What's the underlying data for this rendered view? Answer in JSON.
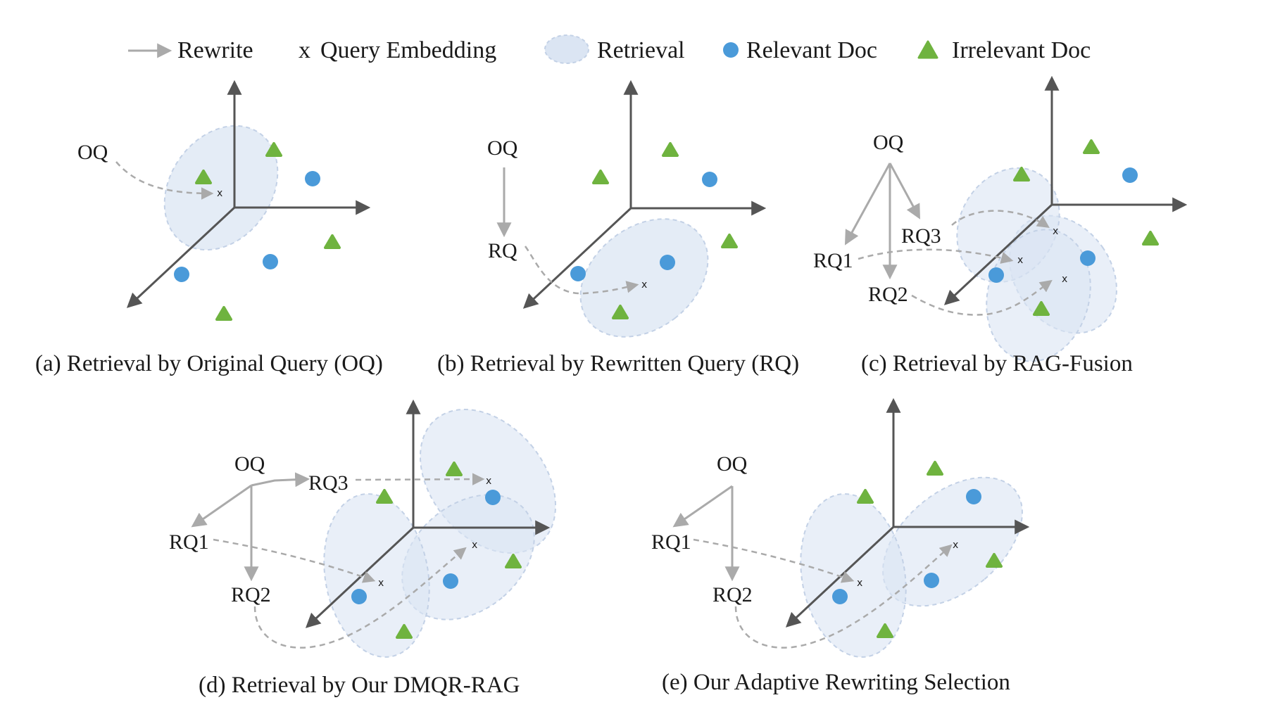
{
  "colors": {
    "axis": "#555555",
    "arrow": "#aaaaaa",
    "retrieval_fill": "#dbe5f3",
    "retrieval_stroke": "#c3d1e6",
    "relevant": "#4a9ad9",
    "irrelevant": "#6fb33f"
  },
  "legend": {
    "rewrite": "Rewrite",
    "query_embedding_mark": "x",
    "query_embedding": "Query Embedding",
    "retrieval": "Retrieval",
    "relevant": "Relevant Doc",
    "irrelevant": "Irrelevant Doc"
  },
  "icons": {
    "rewrite": "arrow-right-icon",
    "query_embedding": "x-mark-icon",
    "retrieval": "ellipse-icon",
    "relevant": "circle-icon",
    "irrelevant": "triangle-icon"
  },
  "panels": {
    "a": {
      "caption": "(a) Retrieval by Original Query (OQ)",
      "oq": "OQ",
      "x": "x"
    },
    "b": {
      "caption": "(b) Retrieval by Rewritten Query (RQ)",
      "oq": "OQ",
      "rq": "RQ",
      "x": "x"
    },
    "c": {
      "caption": "(c) Retrieval by RAG-Fusion",
      "oq": "OQ",
      "rq1": "RQ1",
      "rq2": "RQ2",
      "rq3": "RQ3",
      "x": "x"
    },
    "d": {
      "caption": "(d) Retrieval by Our DMQR-RAG",
      "oq": "OQ",
      "rq1": "RQ1",
      "rq2": "RQ2",
      "rq3": "RQ3",
      "x": "x"
    },
    "e": {
      "caption": "(e) Our Adaptive Rewriting Selection",
      "oq": "OQ",
      "rq1": "RQ1",
      "rq2": "RQ2",
      "x": "x"
    }
  }
}
